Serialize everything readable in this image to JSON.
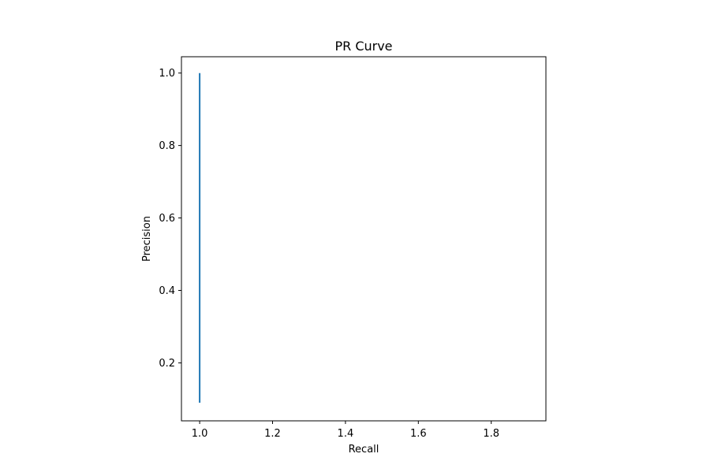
{
  "chart_data": {
    "type": "line",
    "title": "PR Curve",
    "xlabel": "Recall",
    "ylabel": "Precision",
    "xlim": [
      0.95,
      1.95
    ],
    "ylim": [
      0.04,
      1.045
    ],
    "grid": false,
    "series": [
      {
        "color": "#1f77b4",
        "x": [
          1.0,
          1.0
        ],
        "y": [
          0.09,
          1.0
        ]
      }
    ],
    "xticks": [
      {
        "value": 1.0,
        "label": "1.0"
      },
      {
        "value": 1.2,
        "label": "1.2"
      },
      {
        "value": 1.4,
        "label": "1.4"
      },
      {
        "value": 1.6,
        "label": "1.6"
      },
      {
        "value": 1.8,
        "label": "1.8"
      }
    ],
    "yticks": [
      {
        "value": 0.2,
        "label": "0.2"
      },
      {
        "value": 0.4,
        "label": "0.4"
      },
      {
        "value": 0.6,
        "label": "0.6"
      },
      {
        "value": 0.8,
        "label": "0.8"
      },
      {
        "value": 1.0,
        "label": "1.0"
      }
    ]
  }
}
